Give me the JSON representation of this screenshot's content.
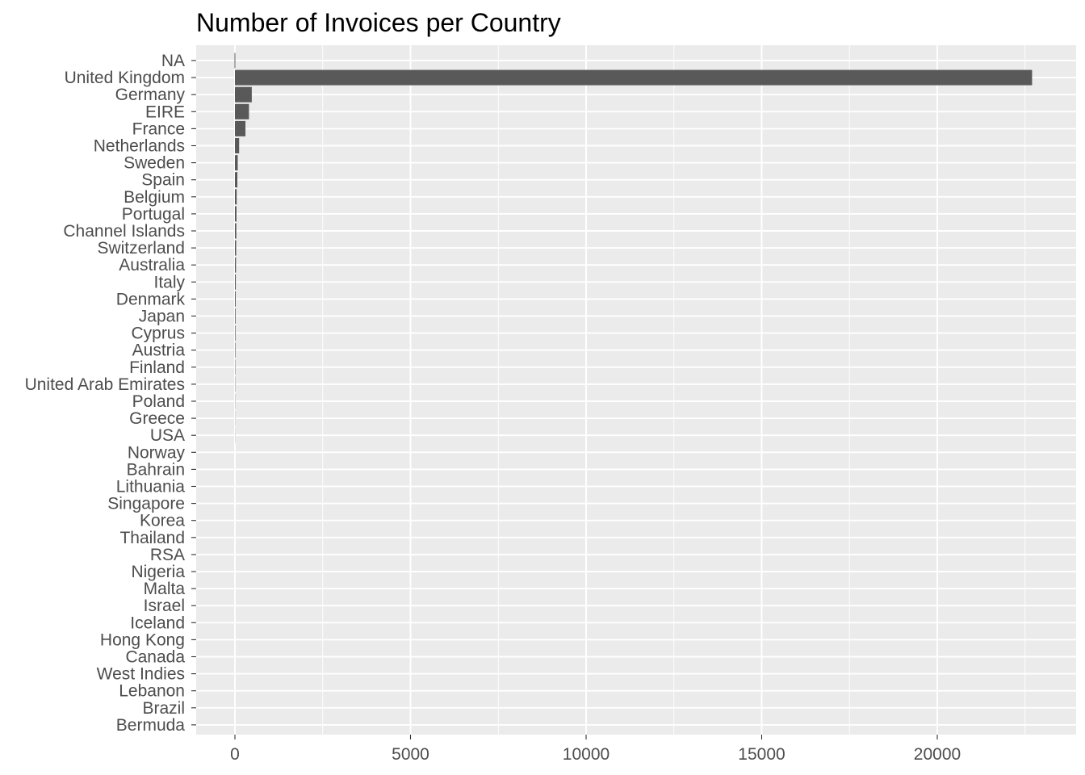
{
  "chart_data": {
    "type": "bar",
    "orientation": "horizontal",
    "title": "Number of Invoices per Country",
    "xlabel": "",
    "ylabel": "",
    "xlim": [
      -1150,
      23850
    ],
    "xticks": [
      0,
      5000,
      10000,
      15000,
      20000
    ],
    "xtick_labels": [
      "0",
      "5000",
      "10000",
      "15000",
      "20000"
    ],
    "grid": true,
    "legend": "none",
    "bar_color": "#595959",
    "panel_color": "#ebebeb",
    "grid_color": "#ffffff",
    "categories": [
      "NA",
      "United Kingdom",
      "Germany",
      "EIRE",
      "France",
      "Netherlands",
      "Sweden",
      "Spain",
      "Belgium",
      "Portugal",
      "Channel Islands",
      "Switzerland",
      "Australia",
      "Italy",
      "Denmark",
      "Japan",
      "Cyprus",
      "Austria",
      "Finland",
      "United Arab Emirates",
      "Poland",
      "Greece",
      "USA",
      "Norway",
      "Bahrain",
      "Lithuania",
      "Singapore",
      "Korea",
      "Thailand",
      "RSA",
      "Nigeria",
      "Malta",
      "Israel",
      "Iceland",
      "Hong Kong",
      "Canada",
      "West Indies",
      "Lebanon",
      "Brazil",
      "Bermuda"
    ],
    "values": [
      0,
      22700,
      480,
      400,
      300,
      120,
      80,
      70,
      50,
      45,
      40,
      35,
      30,
      25,
      22,
      18,
      16,
      14,
      10,
      8,
      6,
      5,
      4,
      0,
      0,
      0,
      0,
      0,
      0,
      0,
      0,
      0,
      0,
      0,
      0,
      0,
      0,
      0,
      0,
      0
    ]
  }
}
